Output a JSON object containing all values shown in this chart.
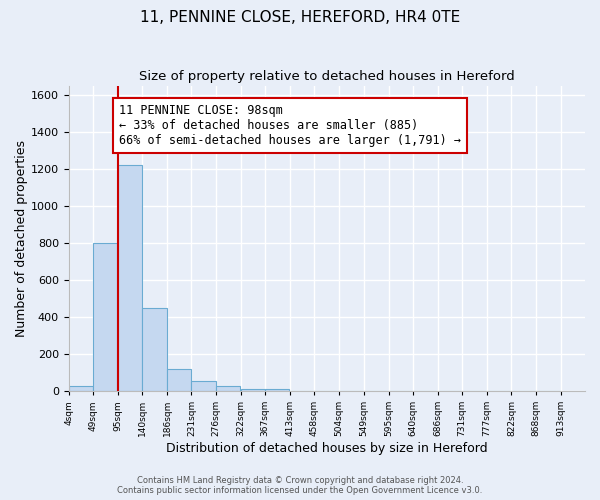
{
  "title": "11, PENNINE CLOSE, HEREFORD, HR4 0TE",
  "subtitle": "Size of property relative to detached houses in Hereford",
  "xlabel": "Distribution of detached houses by size in Hereford",
  "ylabel": "Number of detached properties",
  "bin_labels": [
    "4sqm",
    "49sqm",
    "95sqm",
    "140sqm",
    "186sqm",
    "231sqm",
    "276sqm",
    "322sqm",
    "367sqm",
    "413sqm",
    "458sqm",
    "504sqm",
    "549sqm",
    "595sqm",
    "640sqm",
    "686sqm",
    "731sqm",
    "777sqm",
    "822sqm",
    "868sqm",
    "913sqm"
  ],
  "bin_edges": [
    4,
    49,
    95,
    140,
    186,
    231,
    276,
    322,
    367,
    413,
    458,
    504,
    549,
    595,
    640,
    686,
    731,
    777,
    822,
    868,
    913
  ],
  "bar_heights": [
    25,
    800,
    1220,
    450,
    120,
    55,
    25,
    12,
    10,
    0,
    0,
    0,
    0,
    0,
    0,
    0,
    0,
    0,
    0,
    0
  ],
  "bar_color": "#c5d8f0",
  "bar_edge_color": "#6aabd2",
  "property_line_x": 95,
  "property_line_color": "#cc0000",
  "annotation_text": "11 PENNINE CLOSE: 98sqm\n← 33% of detached houses are smaller (885)\n66% of semi-detached houses are larger (1,791) →",
  "annotation_box_color": "white",
  "annotation_box_edge_color": "#cc0000",
  "ylim": [
    0,
    1650
  ],
  "footer1": "Contains HM Land Registry data © Crown copyright and database right 2024.",
  "footer2": "Contains public sector information licensed under the Open Government Licence v3.0.",
  "background_color": "#e8eef8",
  "axes_background_color": "#e8eef8",
  "grid_color": "white",
  "title_fontsize": 11,
  "subtitle_fontsize": 9.5
}
